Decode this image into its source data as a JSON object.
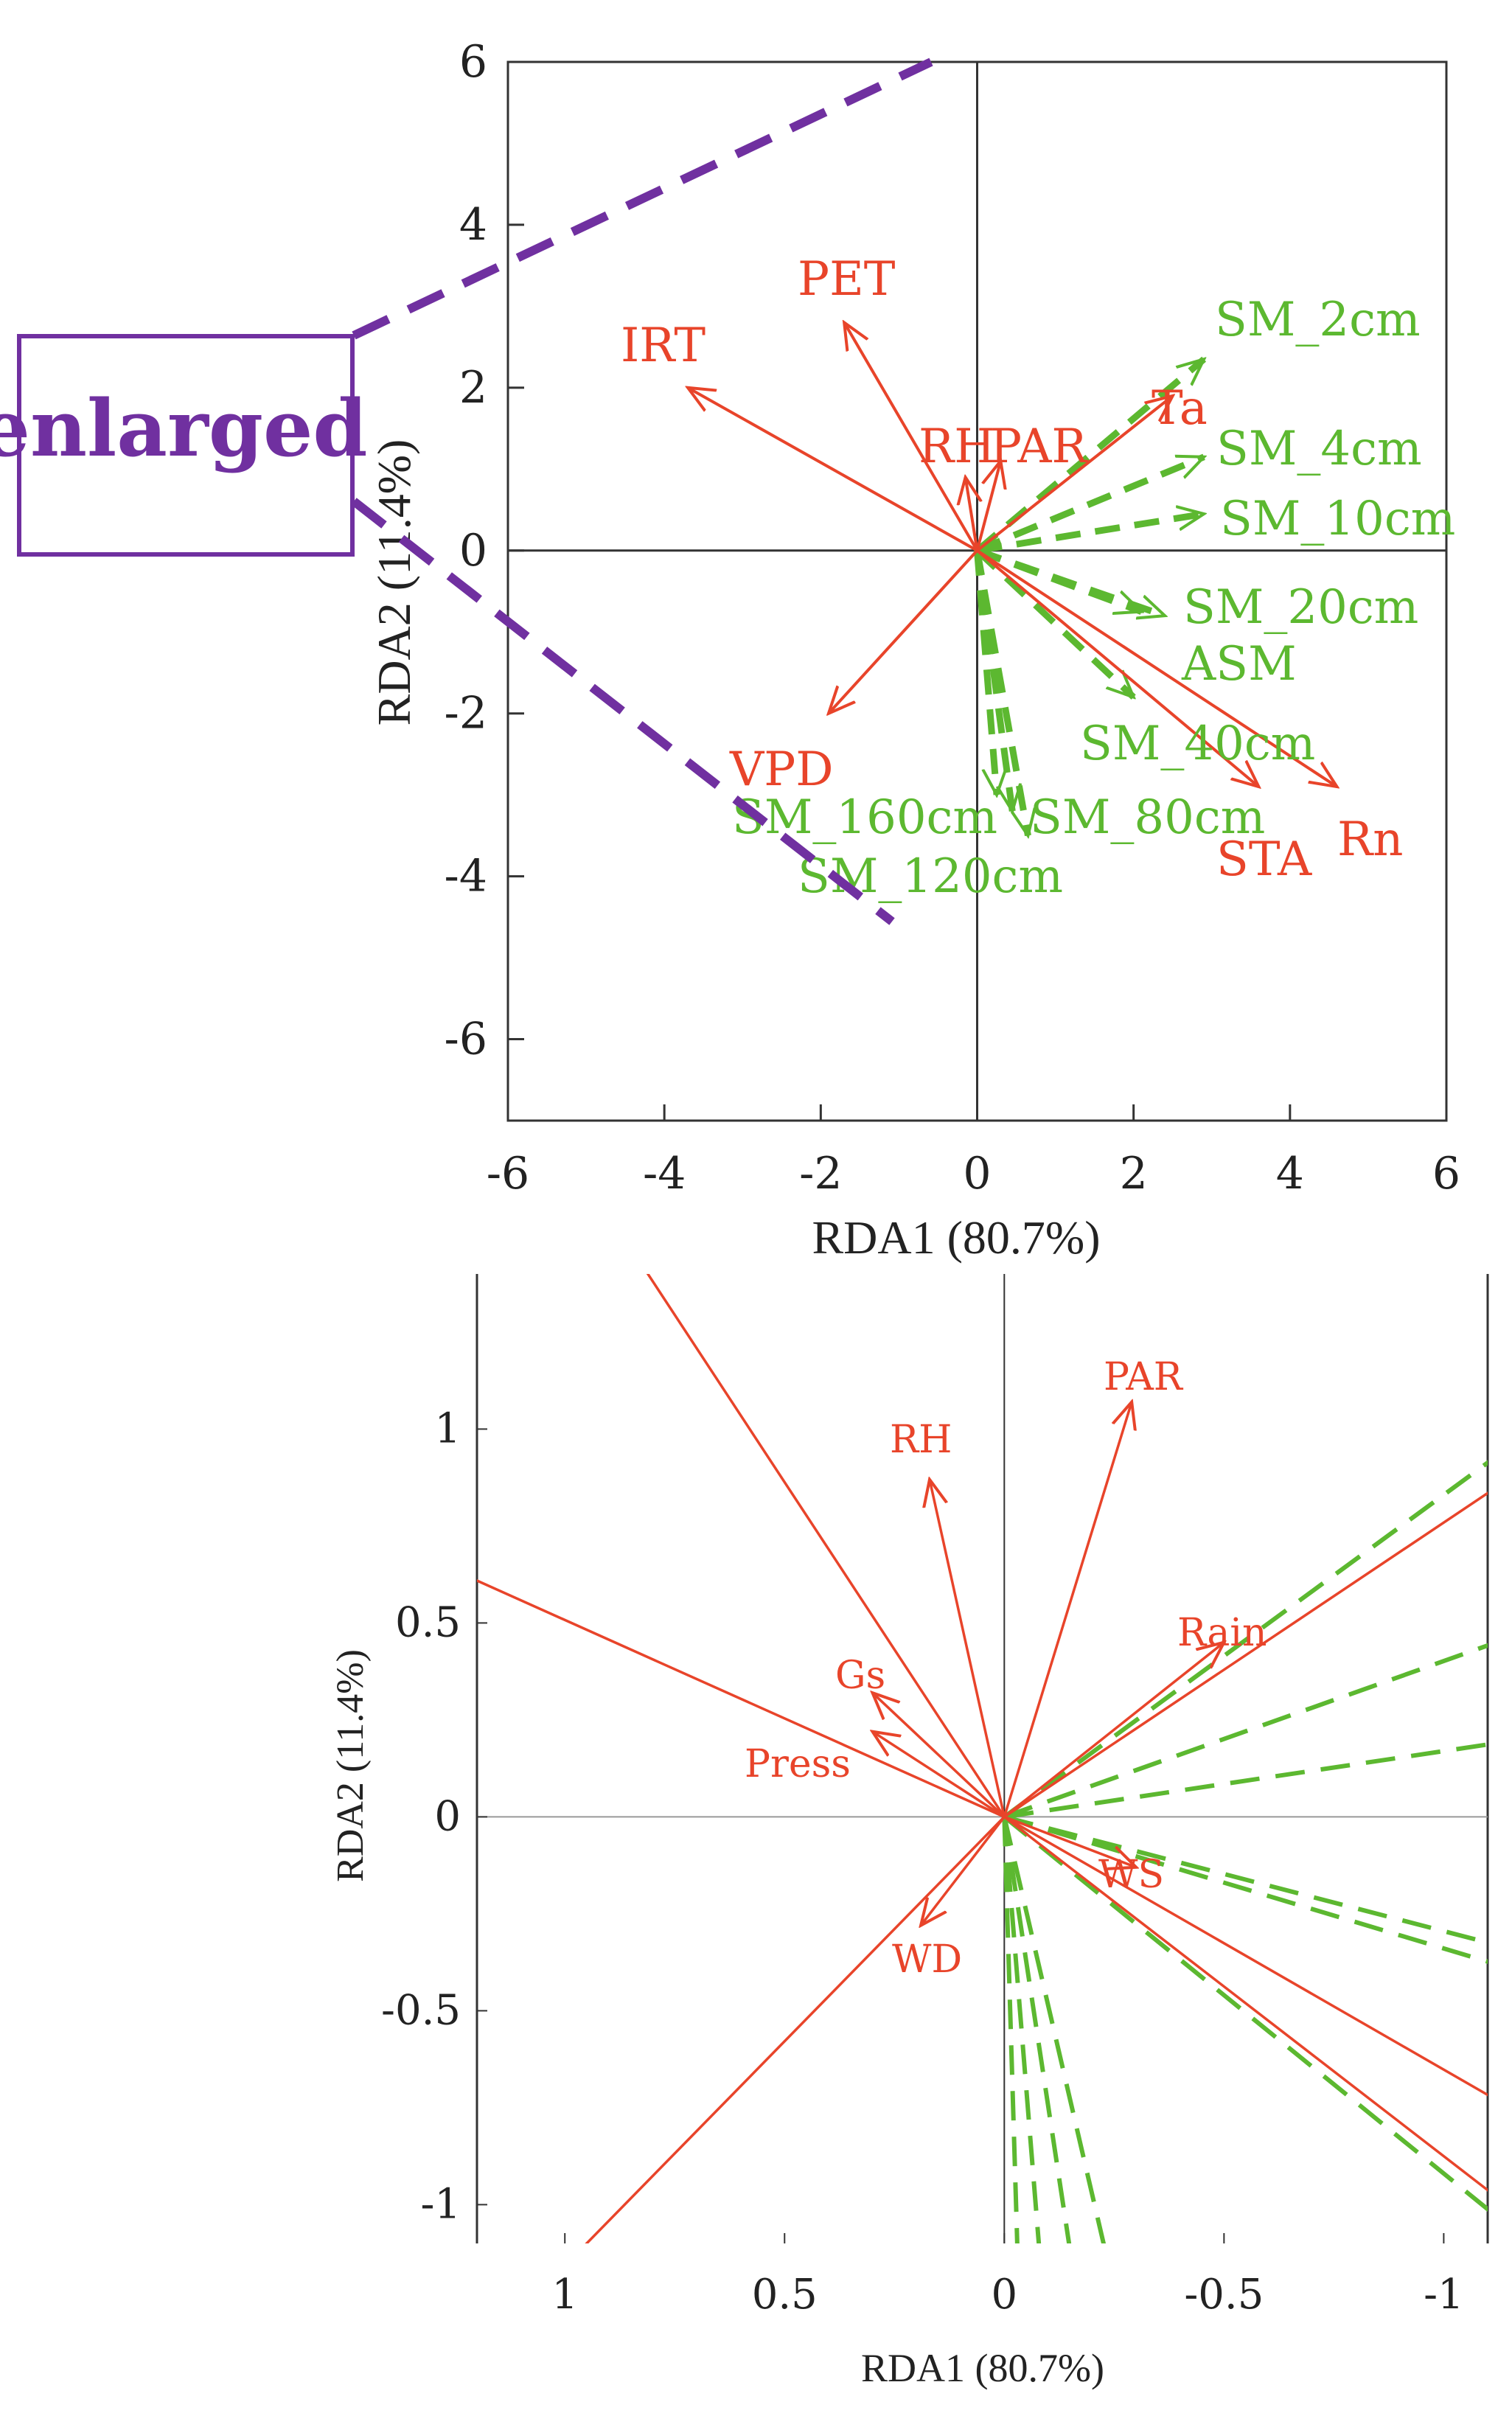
{
  "colors": {
    "env_arrow": "#e8442a",
    "sm_arrow": "#5cb830",
    "axis": "#333333",
    "zoom": "#7030a0",
    "tick_label": "#222222"
  },
  "zoom_label": "enlarged",
  "chart_data": [
    {
      "type": "biplot",
      "name": "main",
      "xlabel": "RDA1 (80.7%)",
      "ylabel": "RDA2 (11.4%)",
      "xlim": [
        -6,
        6
      ],
      "ylim": [
        -7,
        6
      ],
      "x_ticks": [
        -6,
        -4,
        -2,
        0,
        2,
        4,
        6
      ],
      "y_ticks": [
        6,
        4,
        2,
        0,
        -2,
        -4,
        -6
      ],
      "env_vectors": [
        {
          "name": "IRT",
          "x": -3.7,
          "y": 2.0
        },
        {
          "name": "PET",
          "x": -1.7,
          "y": 2.8
        },
        {
          "name": "RH",
          "x": -0.15,
          "y": 0.9
        },
        {
          "name": "PAR",
          "x": 0.3,
          "y": 1.1
        },
        {
          "name": "Ta",
          "x": 2.5,
          "y": 1.9
        },
        {
          "name": "VPD",
          "x": -1.9,
          "y": -2.0
        },
        {
          "name": "STA",
          "x": 3.6,
          "y": -2.9
        },
        {
          "name": "Rn",
          "x": 4.6,
          "y": -2.9
        }
      ],
      "sm_vectors": [
        {
          "name": "SM_2cm",
          "x": 2.9,
          "y": 2.35
        },
        {
          "name": "SM_4cm",
          "x": 2.9,
          "y": 1.15
        },
        {
          "name": "SM_10cm",
          "x": 2.9,
          "y": 0.45
        },
        {
          "name": "SM_20cm",
          "x": 2.1,
          "y": -0.75
        },
        {
          "name": "ASM",
          "x": 2.4,
          "y": -0.8
        },
        {
          "name": "SM_40cm",
          "x": 2.0,
          "y": -1.8
        },
        {
          "name": "SM_80cm",
          "x": 0.65,
          "y": -3.5
        },
        {
          "name": "SM_160cm",
          "x": 0.25,
          "y": -3.0
        },
        {
          "name": "SM_120cm",
          "x": 0.45,
          "y": -3.2
        }
      ]
    },
    {
      "type": "biplot",
      "name": "enlarged",
      "xlabel": "RDA1 (80.7%)",
      "ylabel": "RDA2 (11.4%)",
      "xlim": [
        1.2,
        -1.1
      ],
      "ylim": [
        -1.1,
        1.4
      ],
      "x_ticks": [
        1,
        0.5,
        0,
        -0.5,
        -1
      ],
      "x_tick_labels": [
        "1",
        "0.5",
        "0",
        "-0.5",
        "-1"
      ],
      "y_ticks": [
        1,
        0.5,
        0,
        -0.5,
        -1
      ],
      "y_tick_labels": [
        "1",
        "0.5",
        "0",
        "-0.5",
        "-1"
      ],
      "env_vectors": [
        {
          "name": "RH",
          "x": 0.17,
          "y": 0.87
        },
        {
          "name": "PAR",
          "x": -0.29,
          "y": 1.07
        },
        {
          "name": "Rain",
          "x": -0.5,
          "y": 0.45
        },
        {
          "name": "Gs",
          "x": 0.3,
          "y": 0.32
        },
        {
          "name": "Press",
          "x": 0.3,
          "y": 0.22
        },
        {
          "name": "WD",
          "x": 0.19,
          "y": -0.28
        },
        {
          "name": "WS",
          "x": -0.3,
          "y": -0.13
        }
      ],
      "env_lines": [
        {
          "x": 0.84,
          "y": 1.45
        },
        {
          "x": 1.3,
          "y": 0.66
        },
        {
          "x": 1.08,
          "y": -1.25
        },
        {
          "x": -1.12,
          "y": 0.85
        },
        {
          "x": -1.12,
          "y": -0.73
        },
        {
          "x": -1.12,
          "y": -0.98
        }
      ],
      "sm_lines": [
        {
          "x": -1.12,
          "y": 0.93
        },
        {
          "x": -1.12,
          "y": 0.45
        },
        {
          "x": -1.12,
          "y": 0.19
        },
        {
          "x": -1.12,
          "y": -0.33
        },
        {
          "x": -1.12,
          "y": -0.38
        },
        {
          "x": -1.12,
          "y": -1.03
        },
        {
          "x": -0.23,
          "y": -1.12
        },
        {
          "x": -0.15,
          "y": -1.12
        },
        {
          "x": -0.08,
          "y": -1.12
        },
        {
          "x": -0.03,
          "y": -1.12
        }
      ]
    }
  ]
}
